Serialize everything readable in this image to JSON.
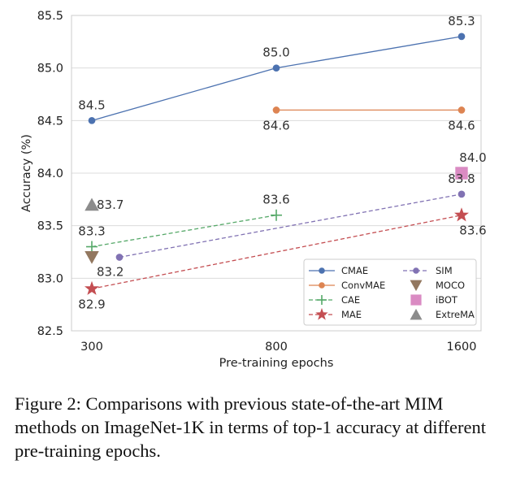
{
  "caption": "Figure 2: Comparisons with previous state-of-the-art MIM methods on ImageNet-1K in terms of top-1 accuracy at different pre-training epochs.",
  "chart_data": {
    "type": "line",
    "xlabel": "Pre-training epochs",
    "ylabel": "Accuracy (%)",
    "x_categories": [
      "300",
      "800",
      "1600"
    ],
    "ylim": [
      82.5,
      85.5
    ],
    "yticks": [
      "82.5",
      "83.0",
      "83.5",
      "84.0",
      "84.5",
      "85.0",
      "85.5"
    ],
    "grid": "horizontal",
    "legend_position": "lower-right",
    "series": [
      {
        "name": "CMAE",
        "color": "#4c72b0",
        "line": "solid",
        "marker": "circle",
        "points": [
          {
            "x": "300",
            "y": 84.5,
            "label": "84.5"
          },
          {
            "x": "800",
            "y": 85.0,
            "label": "85.0"
          },
          {
            "x": "1600",
            "y": 85.3,
            "label": "85.3"
          }
        ]
      },
      {
        "name": "ConvMAE",
        "color": "#dd8452",
        "line": "solid",
        "marker": "circle",
        "points": [
          {
            "x": "800",
            "y": 84.6,
            "label": "84.6"
          },
          {
            "x": "1600",
            "y": 84.6,
            "label": "84.6"
          }
        ]
      },
      {
        "name": "CAE",
        "color": "#55a868",
        "line": "dashed",
        "marker": "plus",
        "points": [
          {
            "x": "300",
            "y": 83.3,
            "label": "83.3"
          },
          {
            "x": "800",
            "y": 83.6,
            "label": "83.6"
          }
        ]
      },
      {
        "name": "MAE",
        "color": "#c44e52",
        "line": "dashed",
        "marker": "star",
        "points": [
          {
            "x": "300",
            "y": 82.9,
            "label": "82.9"
          },
          {
            "x": "1600",
            "y": 83.6,
            "label": "83.6"
          }
        ]
      },
      {
        "name": "SIM",
        "color": "#8172b3",
        "line": "dashed",
        "marker": "circle",
        "points": [
          {
            "x": "300",
            "y": 83.2,
            "label": ""
          },
          {
            "x": "1600",
            "y": 83.8,
            "label": "83.8"
          }
        ]
      },
      {
        "name": "MOCO",
        "color": "#937860",
        "line": "none",
        "marker": "triangle-down",
        "points": [
          {
            "x": "300",
            "y": 83.2,
            "label": "83.2"
          }
        ]
      },
      {
        "name": "iBOT",
        "color": "#da8bc3",
        "line": "none",
        "marker": "square",
        "points": [
          {
            "x": "1600",
            "y": 84.0,
            "label": "84.0"
          }
        ]
      },
      {
        "name": "ExtreMA",
        "color": "#8c8c8c",
        "line": "none",
        "marker": "triangle-up",
        "points": [
          {
            "x": "300",
            "y": 83.7,
            "label": "83.7"
          }
        ]
      }
    ]
  }
}
